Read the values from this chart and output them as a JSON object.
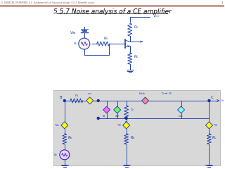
{
  "title": "5.5.7 Noise analysis of a CE amplifier",
  "header": "5. SOURCES OF ERRORS. 5.5. Fundamentals of low-noise design. 5.5.7. Example circuit",
  "page_number": "1",
  "bg_color": "#ffffff",
  "header_color": "#555555",
  "title_color": "#000000",
  "bottom_panel_color": "#d8d8d8",
  "border_color": "#8b0000",
  "circuit_color": "#2244aa",
  "bottom_circuit_color": "#1133aa"
}
